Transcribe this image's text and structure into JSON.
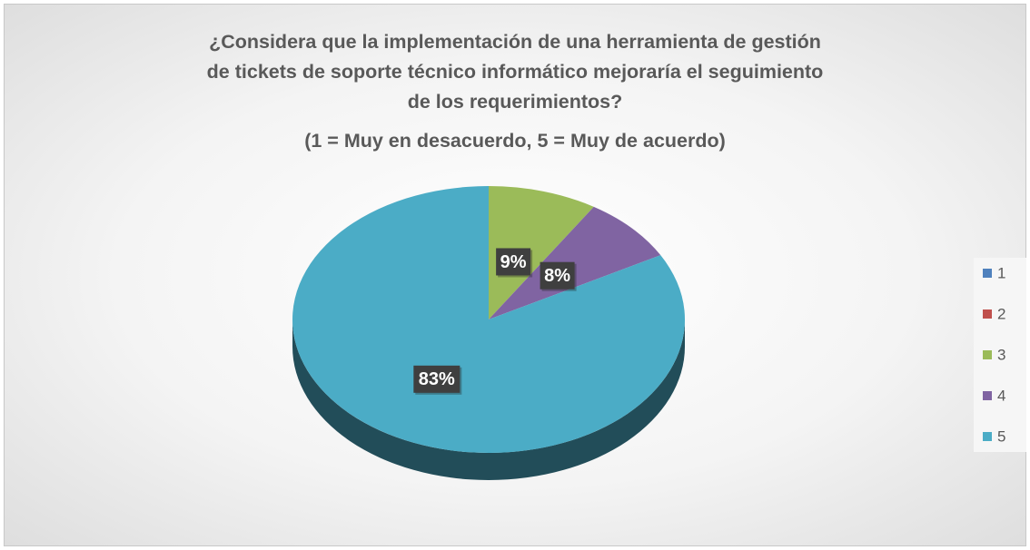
{
  "chart_data": {
    "type": "pie",
    "title": "¿Considera que la implementación de una herramienta de gestión de tickets de soporte técnico informático mejoraría el seguimiento de los requerimientos?",
    "subtitle": "(1 = Muy en desacuerdo, 5 = Muy de acuerdo)",
    "categories": [
      "1",
      "2",
      "3",
      "4",
      "5"
    ],
    "values": [
      0,
      0,
      9,
      8,
      83
    ],
    "value_labels": [
      null,
      null,
      "9%",
      "8%",
      "83%"
    ],
    "colors": [
      "#4f81bd",
      "#c0504d",
      "#9bbb59",
      "#8064a2",
      "#4bacc6"
    ],
    "legend": "right"
  }
}
